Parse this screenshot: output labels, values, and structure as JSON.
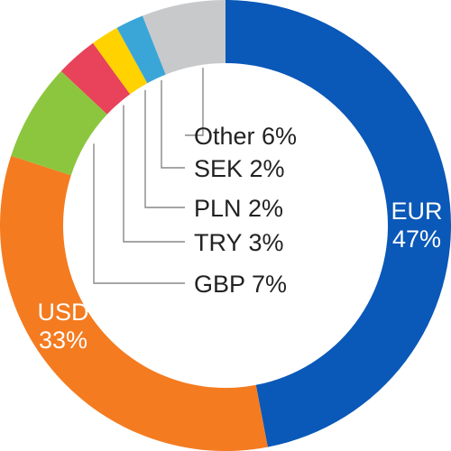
{
  "chart_data": {
    "type": "pie",
    "variant": "donut",
    "title": "",
    "unit": "%",
    "slices": [
      {
        "label": "EUR",
        "value": 47,
        "color": "#0a58b8",
        "text": "EUR",
        "pct_text": "47%",
        "label_style": "inside"
      },
      {
        "label": "USD",
        "value": 33,
        "color": "#f47b20",
        "text": "USD",
        "pct_text": "33%",
        "label_style": "inside"
      },
      {
        "label": "GBP",
        "value": 7,
        "color": "#8cc63f",
        "text": "GBP 7%",
        "label_style": "callout"
      },
      {
        "label": "TRY",
        "value": 3,
        "color": "#e8435a",
        "text": "TRY 3%",
        "label_style": "callout"
      },
      {
        "label": "PLN",
        "value": 2,
        "color": "#ffd200",
        "text": "PLN 2%",
        "label_style": "callout"
      },
      {
        "label": "SEK",
        "value": 2,
        "color": "#3aa6d8",
        "text": "SEK 2%",
        "label_style": "callout"
      },
      {
        "label": "Other",
        "value": 6,
        "color": "#c8c9cb",
        "text": "Other 6%",
        "label_style": "callout"
      }
    ]
  }
}
